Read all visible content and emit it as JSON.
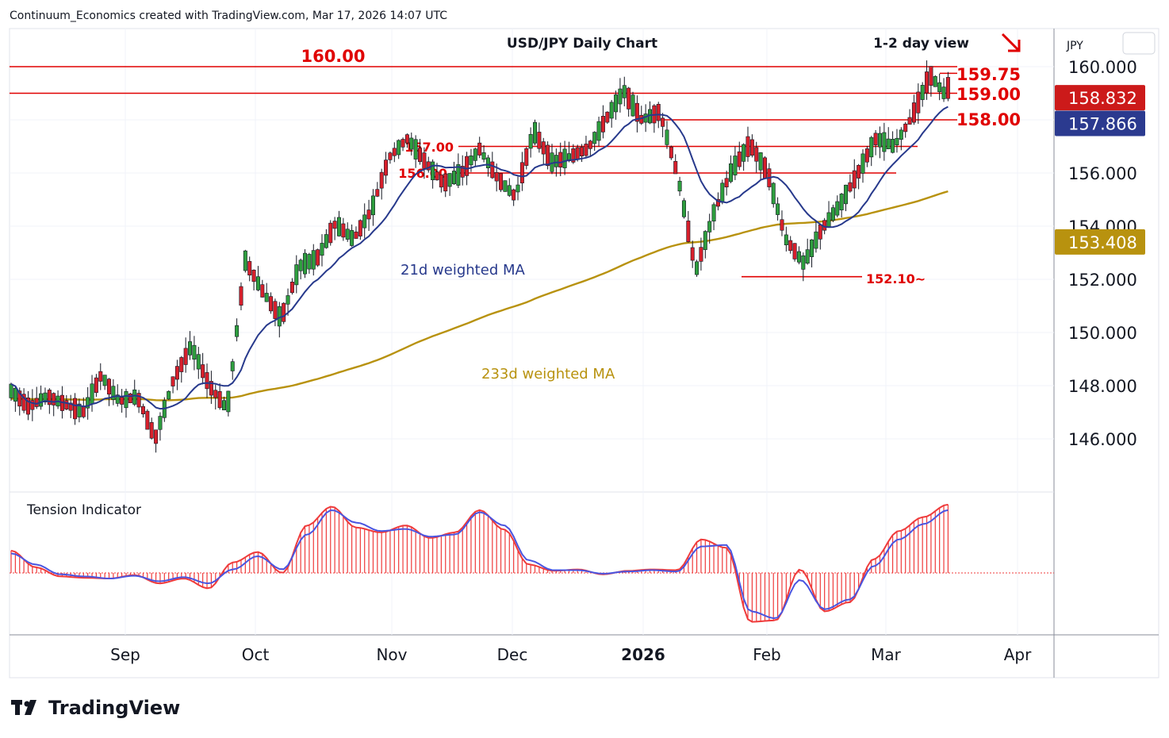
{
  "header": {
    "credit": "Continuum_Economics created with TradingView.com, Mar 17, 2026 14:07 UTC",
    "currency": "JPY"
  },
  "footer": {
    "logo_text": "TradingView"
  },
  "colors": {
    "up": "#2e9e3e",
    "down": "#d8202c",
    "level": "#e00000",
    "ma21": "#27398c",
    "ma233": "#b8920f",
    "tension": "#ef3b3b",
    "tension_signal": "#4a55e0",
    "badge_last": "#cc1a1a",
    "badge_ma21": "#2b3a8f",
    "badge_ma233": "#b8920f"
  },
  "chart_data": [
    {
      "type": "candlestick",
      "title": "USD/JPY Daily Chart",
      "subtitle": "1-2 day view",
      "direction_icon": "down-right-arrow-icon",
      "x_ticks": [
        {
          "label": "Sep",
          "bold": false
        },
        {
          "label": "Oct",
          "bold": false
        },
        {
          "label": "Nov",
          "bold": false
        },
        {
          "label": "Dec",
          "bold": false
        },
        {
          "label": "2026",
          "bold": true
        },
        {
          "label": "Feb",
          "bold": false
        },
        {
          "label": "Mar",
          "bold": false
        },
        {
          "label": "Apr",
          "bold": false
        }
      ],
      "y_ticks": [
        "160.000",
        "156.000",
        "154.000",
        "152.000",
        "150.000",
        "148.000",
        "146.000"
      ],
      "ylim": [
        144.0,
        161.0
      ],
      "levels": [
        {
          "label": "160.00",
          "value": 160.0
        },
        {
          "label": "159.75",
          "value": 159.75
        },
        {
          "label": "159.00",
          "value": 159.0
        },
        {
          "label": "158.00",
          "value": 158.0
        },
        {
          "label": "157.00",
          "value": 157.0
        },
        {
          "label": "156.00",
          "value": 156.0
        },
        {
          "label": "152.10~",
          "value": 152.1
        }
      ],
      "series": [
        {
          "name": "21d weighted MA",
          "last": "157.866"
        },
        {
          "name": "233d weighted MA",
          "last": "153.408"
        }
      ],
      "last_price": "158.832",
      "ohlc_anchors": [
        [
          147.5,
          148.3,
          146.8,
          147.8
        ],
        [
          147.9,
          148.2,
          146.9,
          147.2
        ],
        [
          147.4,
          148.1,
          146.2,
          147.6
        ],
        [
          147.6,
          148.4,
          146.8,
          147.3
        ],
        [
          147.3,
          147.9,
          146.6,
          147.0
        ],
        [
          147.1,
          148.9,
          146.9,
          148.4
        ],
        [
          148.3,
          148.8,
          147.0,
          147.4
        ],
        [
          147.3,
          147.9,
          146.5,
          147.6
        ],
        [
          147.6,
          147.9,
          145.6,
          146.0
        ],
        [
          146.2,
          148.6,
          146.0,
          148.2
        ],
        [
          148.2,
          149.9,
          148.0,
          149.5
        ],
        [
          149.5,
          149.9,
          147.7,
          148.0
        ],
        [
          147.9,
          148.4,
          146.6,
          147.1
        ],
        [
          147.1,
          153.2,
          147.0,
          152.7
        ],
        [
          152.8,
          153.2,
          151.0,
          151.5
        ],
        [
          151.4,
          151.8,
          149.8,
          150.5
        ],
        [
          150.6,
          152.8,
          150.2,
          152.5
        ],
        [
          152.4,
          153.0,
          151.8,
          152.8
        ],
        [
          152.8,
          154.4,
          152.3,
          154.1
        ],
        [
          154.0,
          154.4,
          153.0,
          153.5
        ],
        [
          153.4,
          154.9,
          153.1,
          154.6
        ],
        [
          154.7,
          156.8,
          154.5,
          156.6
        ],
        [
          156.6,
          157.8,
          156.3,
          157.3
        ],
        [
          157.2,
          157.5,
          155.9,
          156.4
        ],
        [
          156.3,
          156.6,
          155.0,
          155.6
        ],
        [
          155.6,
          156.3,
          154.7,
          156.0
        ],
        [
          156.0,
          157.1,
          155.5,
          156.9
        ],
        [
          156.8,
          157.0,
          155.3,
          155.8
        ],
        [
          155.7,
          156.0,
          154.5,
          155.1
        ],
        [
          155.1,
          157.8,
          155.0,
          157.6
        ],
        [
          157.5,
          157.7,
          156.0,
          156.4
        ],
        [
          156.3,
          156.9,
          155.8,
          156.6
        ],
        [
          156.6,
          157.4,
          156.2,
          156.9
        ],
        [
          156.9,
          158.2,
          156.5,
          158.0
        ],
        [
          158.0,
          159.4,
          157.7,
          159.1
        ],
        [
          159.0,
          159.3,
          157.8,
          158.0
        ],
        [
          158.0,
          158.6,
          157.6,
          158.3
        ],
        [
          158.3,
          159.2,
          155.6,
          155.9
        ],
        [
          155.9,
          156.0,
          152.1,
          152.3
        ],
        [
          152.4,
          154.8,
          152.2,
          154.5
        ],
        [
          154.5,
          156.4,
          154.3,
          156.1
        ],
        [
          156.0,
          157.4,
          155.8,
          157.1
        ],
        [
          157.1,
          157.6,
          155.9,
          156.0
        ],
        [
          155.9,
          156.1,
          153.2,
          153.5
        ],
        [
          153.5,
          154.1,
          152.2,
          152.6
        ],
        [
          152.6,
          154.0,
          152.4,
          153.9
        ],
        [
          153.8,
          155.3,
          153.6,
          154.8
        ],
        [
          154.8,
          156.2,
          154.5,
          156.0
        ],
        [
          156.0,
          157.6,
          155.8,
          157.3
        ],
        [
          157.2,
          157.6,
          156.5,
          157.0
        ],
        [
          157.0,
          158.4,
          156.9,
          158.1
        ],
        [
          158.1,
          159.9,
          158.0,
          159.7
        ],
        [
          159.6,
          159.8,
          158.7,
          158.8
        ]
      ]
    },
    {
      "type": "bar",
      "title": "Tension Indicator",
      "ylim": [
        -1.0,
        1.0
      ],
      "signal_anchors": [
        0.28,
        0.12,
        -0.02,
        -0.05,
        -0.08,
        -0.04,
        -0.12,
        -0.06,
        -0.15,
        0.05,
        0.24,
        0.05,
        0.55,
        0.9,
        0.72,
        0.6,
        0.63,
        0.52,
        0.55,
        0.87,
        0.68,
        0.18,
        0.04,
        0.04,
        -0.01,
        0.02,
        0.04,
        0.02,
        0.38,
        0.4,
        -0.55,
        -0.65,
        -0.1,
        -0.52,
        -0.38,
        0.1,
        0.48,
        0.7,
        0.9
      ],
      "tension_anchors": [
        0.32,
        0.08,
        -0.05,
        -0.07,
        -0.08,
        -0.03,
        -0.15,
        -0.08,
        -0.22,
        0.15,
        0.3,
        0.0,
        0.68,
        0.95,
        0.65,
        0.58,
        0.68,
        0.5,
        0.58,
        0.9,
        0.62,
        0.12,
        0.03,
        0.05,
        -0.02,
        0.03,
        0.05,
        0.04,
        0.48,
        0.36,
        -0.7,
        -0.68,
        0.05,
        -0.55,
        -0.42,
        0.2,
        0.6,
        0.8,
        0.98
      ]
    }
  ]
}
